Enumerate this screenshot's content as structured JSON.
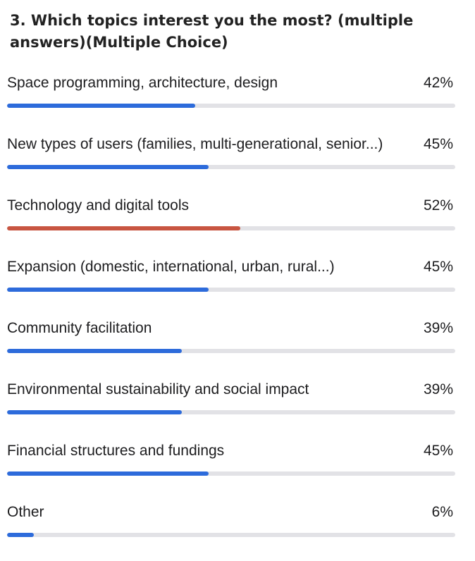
{
  "question": {
    "title": "3. Which topics interest you the most?  (multiple answers)(Multiple Choice)"
  },
  "colors": {
    "default_fill": "#2d6bdb",
    "highlight_fill": "#c85541",
    "track": "#e2e2e6"
  },
  "options": [
    {
      "label": "Space programming, architecture, design",
      "percent_text": "42%",
      "value": 42,
      "highlight": false
    },
    {
      "label": "New types of users (families, multi-generational, senior...)",
      "percent_text": "45%",
      "value": 45,
      "highlight": false
    },
    {
      "label": "Technology and digital tools",
      "percent_text": "52%",
      "value": 52,
      "highlight": true
    },
    {
      "label": "Expansion (domestic, international, urban, rural...)",
      "percent_text": "45%",
      "value": 45,
      "highlight": false
    },
    {
      "label": "Community facilitation",
      "percent_text": "39%",
      "value": 39,
      "highlight": false
    },
    {
      "label": "Environmental sustainability and social impact",
      "percent_text": "39%",
      "value": 39,
      "highlight": false
    },
    {
      "label": "Financial structures and fundings",
      "percent_text": "45%",
      "value": 45,
      "highlight": false
    },
    {
      "label": "Other",
      "percent_text": "6%",
      "value": 6,
      "highlight": false
    }
  ]
}
